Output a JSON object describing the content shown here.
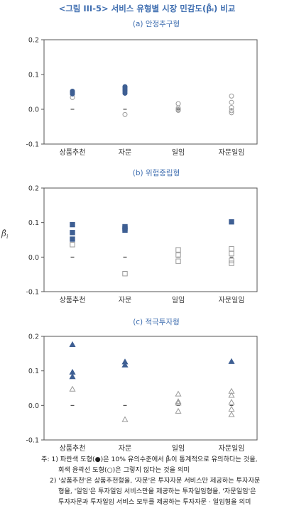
{
  "figure_title": "<그림 III-5> 서비스 유형별 시장 민감도(β̂ᵢ) 비교",
  "y_axis_label": "β̂",
  "y_axis_label_sub": "i",
  "colors": {
    "significant": "#3e5f93",
    "insignificant": "#9a9a9a",
    "title": "#3f6eb0"
  },
  "chart_data": [
    {
      "type": "scatter",
      "title": "(a) 안정추구형",
      "marker": "circle",
      "categories": [
        "상품추천",
        "자문",
        "일임",
        "자문일임"
      ],
      "ylim": [
        -0.1,
        0.2
      ],
      "yticks": [
        "0.2",
        "0.1",
        "0.0",
        "-0.1"
      ],
      "yticks_values": [
        0.2,
        0.1,
        0.0,
        -0.1
      ],
      "grid": false,
      "significant": [
        [
          0.052,
          0.048,
          0.044
        ],
        [
          0.065,
          0.062,
          0.058,
          0.054,
          0.05,
          0.046
        ],
        [],
        []
      ],
      "insignificant": [
        [
          0.034
        ],
        [
          -0.015
        ],
        [
          0.016,
          0.003,
          -0.001,
          -0.003
        ],
        [
          0.038,
          0.02,
          0.005,
          -0.004,
          -0.01
        ]
      ]
    },
    {
      "type": "scatter",
      "title": "(b) 위험중립형",
      "marker": "square",
      "categories": [
        "상품추천",
        "자문",
        "일임",
        "자문일임"
      ],
      "ylim": [
        -0.1,
        0.2
      ],
      "yticks": [
        "0.2",
        "0.1",
        "0.0",
        "-0.1"
      ],
      "yticks_values": [
        0.2,
        0.1,
        0.0,
        -0.1
      ],
      "grid": false,
      "significant": [
        [
          0.094,
          0.071,
          0.052
        ],
        [
          0.088,
          0.083,
          0.078
        ],
        [],
        [
          0.102
        ]
      ],
      "insignificant": [
        [
          0.036
        ],
        [
          -0.048
        ],
        [
          0.021,
          0.006,
          -0.012
        ],
        [
          0.024,
          0.01,
          -0.01,
          -0.018
        ]
      ]
    },
    {
      "type": "scatter",
      "title": "(c) 적극투자형",
      "marker": "triangle",
      "categories": [
        "상품추천",
        "자문",
        "일임",
        "자문일임"
      ],
      "ylim": [
        -0.1,
        0.2
      ],
      "yticks": [
        "0.2",
        "0.1",
        "0.0",
        "-0.1"
      ],
      "yticks_values": [
        0.2,
        0.1,
        0.0,
        -0.1
      ],
      "grid": false,
      "significant": [
        [
          0.177,
          0.097,
          0.084
        ],
        [
          0.127,
          0.118
        ],
        [],
        [
          0.128
        ]
      ],
      "insignificant": [
        [
          0.048
        ],
        [
          -0.04
        ],
        [
          0.034,
          0.012,
          0.008,
          -0.016
        ],
        [
          0.042,
          0.03,
          0.01,
          -0.01,
          -0.026
        ]
      ]
    }
  ],
  "notes": [
    "주: 1) 파란색 도형(●)은 10% 유의수준에서 β̂ᵢ이 통계적으로 유의하다는 것을,",
    "회색 윤곽선 도형(○)은 그렇지 않다는 것을 의미",
    "2) '상품추천'은 상품추천형을, '자문'은 투자자문 서비스만 제공하는 투자자문",
    "형을, '일임'은 투자일임 서비스만을 제공하는 투자일임형을, '자문일임'은",
    "투자자문과 투자일임 서비스 모두를 제공하는 투자자문 · 일임형을 의미"
  ]
}
